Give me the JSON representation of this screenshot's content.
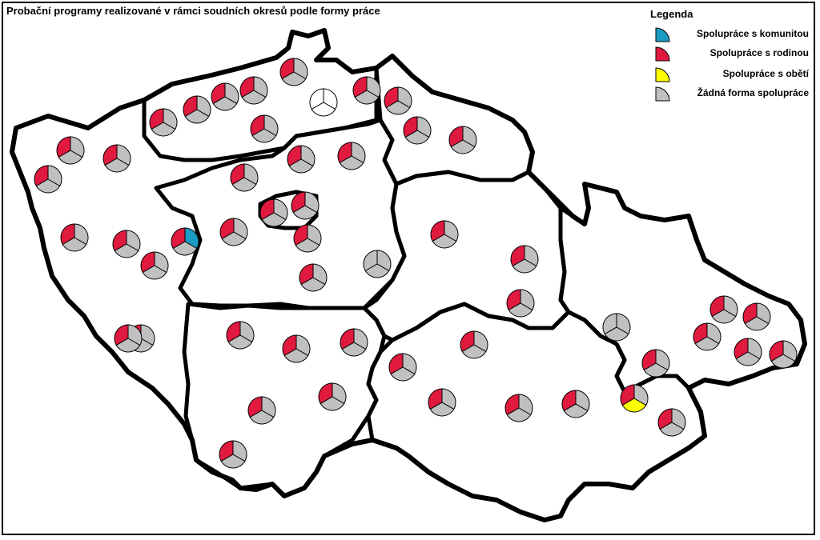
{
  "title": "Probační programy realizované v rámci soudních okresů podle formy práce",
  "legend": {
    "title": "Legenda",
    "items": [
      {
        "label": "Spolupráce s komunitou",
        "color": "#1a9bc4"
      },
      {
        "label": "Spolupráce s rodinou",
        "color": "#e0193f"
      },
      {
        "label": "Spolupráce s obětí",
        "color": "#ffff00"
      },
      {
        "label": "Žádná forma spolupráce",
        "color": "#c0c0c0"
      }
    ]
  },
  "pie_types": {
    "family": [
      "#e0193f",
      "#c0c0c0",
      "#c0c0c0"
    ],
    "none": [
      "#c0c0c0",
      "#c0c0c0",
      "#c0c0c0"
    ],
    "empty": [
      "#ffffff",
      "#ffffff",
      "#ffffff"
    ],
    "community": [
      "#e0193f",
      "#1a9bc4",
      "#c0c0c0"
    ],
    "victim": [
      "#e0193f",
      "#c0c0c0",
      "#ffff00"
    ]
  },
  "district_pies": [
    {
      "type": "family"
    },
    {
      "type": "family"
    },
    {
      "type": "family"
    },
    {
      "type": "family"
    },
    {
      "type": "family"
    },
    {
      "type": "family"
    },
    {
      "type": "family"
    },
    {
      "type": "empty"
    },
    {
      "type": "family"
    },
    {
      "type": "family"
    },
    {
      "type": "family"
    },
    {
      "type": "family"
    },
    {
      "type": "family"
    },
    {
      "type": "family"
    },
    {
      "type": "family"
    },
    {
      "type": "family"
    },
    {
      "type": "family"
    },
    {
      "type": "family"
    },
    {
      "type": "family"
    },
    {
      "type": "family"
    },
    {
      "type": "family"
    },
    {
      "type": "family"
    },
    {
      "type": "community"
    },
    {
      "type": "family"
    },
    {
      "type": "family"
    },
    {
      "type": "family"
    },
    {
      "type": "none"
    },
    {
      "type": "family"
    },
    {
      "type": "family"
    },
    {
      "type": "family"
    },
    {
      "type": "family"
    },
    {
      "type": "family"
    },
    {
      "type": "family"
    },
    {
      "type": "family"
    },
    {
      "type": "family"
    },
    {
      "type": "family"
    },
    {
      "type": "family"
    },
    {
      "type": "family"
    },
    {
      "type": "family"
    },
    {
      "type": "family"
    },
    {
      "type": "family"
    },
    {
      "type": "family"
    },
    {
      "type": "family"
    },
    {
      "type": "family"
    },
    {
      "type": "family"
    },
    {
      "type": "family"
    },
    {
      "type": "none"
    },
    {
      "type": "family"
    },
    {
      "type": "family"
    },
    {
      "type": "family"
    },
    {
      "type": "family"
    },
    {
      "type": "family"
    },
    {
      "type": "family"
    },
    {
      "type": "victim"
    },
    {
      "type": "family"
    }
  ]
}
